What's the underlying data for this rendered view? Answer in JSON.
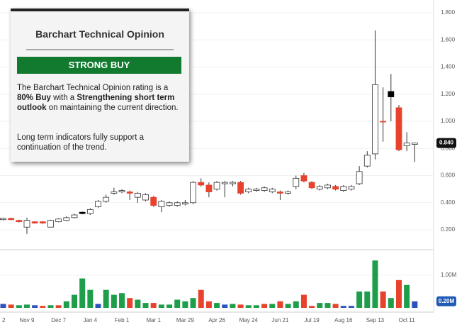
{
  "chart_data": {
    "type": "candlestick",
    "categories": [
      "2",
      null,
      null,
      null,
      "Nov 9",
      null,
      null,
      null,
      "Dec 7",
      null,
      null,
      null,
      "Jan 4",
      null,
      null,
      null,
      "Feb 1",
      null,
      null,
      null,
      "Mar 1",
      null,
      null,
      null,
      "Mar 29",
      null,
      null,
      null,
      "Apr 26",
      null,
      null,
      null,
      "May 24",
      null,
      null,
      null,
      "Jun 21",
      null,
      null,
      null,
      "Jul 19",
      null,
      null,
      null,
      "Aug 16",
      null,
      null,
      null,
      "Sep 13",
      null,
      null,
      null,
      "Oct 11",
      null
    ],
    "open": [
      null,
      0.275,
      0.285,
      0.27,
      0.22,
      0.26,
      0.26,
      0.22,
      0.26,
      0.27,
      0.29,
      0.32,
      0.32,
      0.37,
      0.41,
      0.47,
      0.48,
      0.48,
      0.44,
      0.42,
      0.44,
      0.37,
      0.38,
      0.38,
      0.39,
      0.4,
      0.55,
      0.53,
      0.5,
      0.54,
      0.54,
      0.55,
      0.48,
      0.49,
      0.49,
      0.48,
      0.48,
      0.47,
      0.52,
      0.6,
      0.55,
      0.5,
      0.51,
      0.52,
      0.49,
      0.5,
      0.54,
      0.67,
      0.76,
      1.0,
      1.18,
      1.1,
      0.82,
      0.83
    ],
    "high": [
      null,
      0.29,
      0.29,
      0.275,
      0.29,
      0.265,
      0.265,
      0.275,
      0.285,
      0.3,
      0.32,
      0.335,
      0.36,
      0.42,
      0.46,
      0.51,
      0.5,
      0.49,
      0.48,
      0.47,
      0.45,
      0.42,
      0.41,
      0.41,
      0.42,
      0.56,
      0.58,
      0.55,
      0.56,
      0.56,
      0.56,
      0.56,
      0.51,
      0.51,
      0.52,
      0.51,
      0.49,
      0.49,
      0.6,
      0.62,
      0.56,
      0.53,
      0.54,
      0.53,
      0.53,
      0.53,
      0.67,
      0.78,
      1.67,
      1.25,
      1.35,
      1.12,
      0.92,
      0.84
    ],
    "low": [
      null,
      0.27,
      0.27,
      0.255,
      0.17,
      0.245,
      0.245,
      0.22,
      0.255,
      0.265,
      0.285,
      0.315,
      0.31,
      0.36,
      0.4,
      0.46,
      0.47,
      0.42,
      0.4,
      0.41,
      0.37,
      0.33,
      0.37,
      0.37,
      0.38,
      0.39,
      0.52,
      0.44,
      0.49,
      0.44,
      0.52,
      0.46,
      0.47,
      0.48,
      0.48,
      0.47,
      0.42,
      0.46,
      0.5,
      0.55,
      0.5,
      0.49,
      0.5,
      0.49,
      0.48,
      0.49,
      0.53,
      0.66,
      0.72,
      0.85,
      1.0,
      0.78,
      0.78,
      0.7
    ],
    "close": [
      null,
      0.285,
      0.275,
      0.26,
      0.27,
      0.25,
      0.25,
      0.27,
      0.28,
      0.29,
      0.31,
      0.33,
      0.35,
      0.41,
      0.44,
      0.48,
      0.49,
      0.47,
      0.47,
      0.46,
      0.38,
      0.41,
      0.4,
      0.4,
      0.4,
      0.55,
      0.53,
      0.48,
      0.55,
      0.55,
      0.55,
      0.47,
      0.5,
      0.5,
      0.51,
      0.5,
      0.47,
      0.48,
      0.58,
      0.56,
      0.51,
      0.52,
      0.53,
      0.5,
      0.52,
      0.52,
      0.63,
      0.75,
      1.27,
      1.0,
      1.22,
      0.79,
      0.84,
      0.84
    ],
    "candle_colors": [
      null,
      "#ffffff",
      "#e8412c",
      "#e8412c",
      "#ffffff",
      "#e8412c",
      "#e8412c",
      "#ffffff",
      "#ffffff",
      "#ffffff",
      "#ffffff",
      "#000000",
      "#ffffff",
      "#ffffff",
      "#ffffff",
      "#ffffff",
      "#ffffff",
      "#e8412c",
      "#ffffff",
      "#ffffff",
      "#e8412c",
      "#ffffff",
      "#ffffff",
      "#ffffff",
      "#ffffff",
      "#ffffff",
      "#e8412c",
      "#e8412c",
      "#ffffff",
      "#ffffff",
      "#ffffff",
      "#e8412c",
      "#ffffff",
      "#ffffff",
      "#ffffff",
      "#ffffff",
      "#e8412c",
      "#ffffff",
      "#ffffff",
      "#e8412c",
      "#e8412c",
      "#ffffff",
      "#ffffff",
      "#e8412c",
      "#ffffff",
      "#ffffff",
      "#ffffff",
      "#ffffff",
      "#ffffff",
      "#e8412c",
      "#000000",
      "#e8412c",
      "#ffffff",
      "#ffffff"
    ],
    "ylim": [
      0.054,
      1.894
    ],
    "yticks": [
      {
        "value": 0.2,
        "label": "0.200"
      },
      {
        "value": 0.4,
        "label": "0.400"
      },
      {
        "value": 0.6,
        "label": "0.600"
      },
      {
        "value": 0.8,
        "label": "0.800"
      },
      {
        "value": 1.0,
        "label": "1.000"
      },
      {
        "value": 1.2,
        "label": "1.200"
      },
      {
        "value": 1.4,
        "label": "1.400"
      },
      {
        "value": 1.6,
        "label": "1.600"
      },
      {
        "value": 1.8,
        "label": "1.800"
      }
    ],
    "last_price": {
      "value": 0.84,
      "label": "0.840"
    },
    "grid": true,
    "volume": [
      null,
      120000,
      100000,
      80000,
      100000,
      80000,
      60000,
      80000,
      80000,
      200000,
      400000,
      900000,
      550000,
      120000,
      550000,
      400000,
      450000,
      300000,
      250000,
      150000,
      150000,
      100000,
      100000,
      250000,
      200000,
      300000,
      550000,
      200000,
      150000,
      100000,
      120000,
      100000,
      80000,
      80000,
      120000,
      120000,
      200000,
      120000,
      200000,
      400000,
      60000,
      150000,
      150000,
      120000,
      60000,
      60000,
      500000,
      500000,
      1450000,
      500000,
      300000,
      850000,
      700000,
      200000
    ],
    "volume_colors": [
      null,
      "#2a52be",
      "#e8412c",
      "#1e9e4a",
      "#1e9e4a",
      "#2a52be",
      "#e8412c",
      "#1e9e4a",
      "#e8412c",
      "#1e9e4a",
      "#1e9e4a",
      "#1e9e4a",
      "#1e9e4a",
      "#2a52be",
      "#1e9e4a",
      "#1e9e4a",
      "#1e9e4a",
      "#e8412c",
      "#1e9e4a",
      "#1e9e4a",
      "#e8412c",
      "#1e9e4a",
      "#1e9e4a",
      "#1e9e4a",
      "#1e9e4a",
      "#1e9e4a",
      "#e8412c",
      "#e8412c",
      "#1e9e4a",
      "#2a52be",
      "#1e9e4a",
      "#e8412c",
      "#1e9e4a",
      "#1e9e4a",
      "#e8412c",
      "#1e9e4a",
      "#e8412c",
      "#1e9e4a",
      "#1e9e4a",
      "#e8412c",
      "#e8412c",
      "#1e9e4a",
      "#1e9e4a",
      "#e8412c",
      "#2a52be",
      "#2a52be",
      "#1e9e4a",
      "#1e9e4a",
      "#1e9e4a",
      "#e8412c",
      "#1e9e4a",
      "#e8412c",
      "#1e9e4a",
      "#2a52be"
    ],
    "volume_ylim": [
      0,
      1780000
    ],
    "volume_yticks": [
      {
        "value": 1000000,
        "label": "1.00M"
      }
    ],
    "last_volume": {
      "value": 200000,
      "label": "0.20M"
    }
  },
  "panel": {
    "title": "Barchart Technical Opinion",
    "rating": "STRONG BUY",
    "paragraph1": [
      "The Barchart Technical Opinion rating is a ",
      "80% Buy",
      " with a ",
      "Strengthening short term outlook",
      " on maintaining the current direction."
    ],
    "paragraph2": "Long term indicators fully support a continuation of the trend."
  }
}
